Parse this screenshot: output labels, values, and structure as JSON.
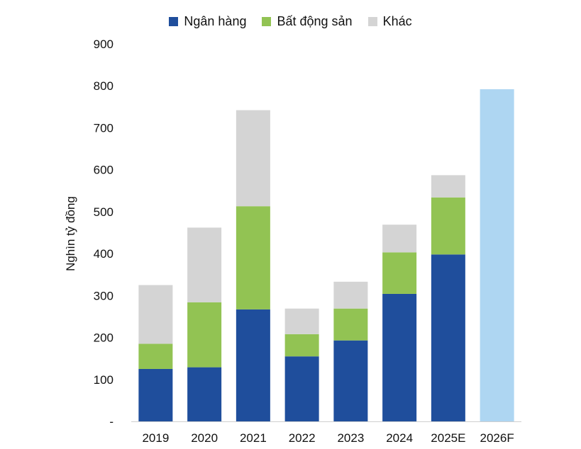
{
  "chart_data": {
    "type": "bar",
    "stacked": true,
    "categories": [
      "2019",
      "2020",
      "2021",
      "2022",
      "2023",
      "2024",
      "2025E",
      "2026F"
    ],
    "series": [
      {
        "name": "Ngân hàng",
        "color": "#1f4e9c",
        "values": [
          125,
          129,
          267,
          155,
          193,
          304,
          398,
          null
        ]
      },
      {
        "name": "Bất động sản",
        "color": "#92c353",
        "values": [
          60,
          155,
          246,
          53,
          76,
          99,
          136,
          null
        ]
      },
      {
        "name": "Khác",
        "color": "#d4d4d4",
        "values": [
          140,
          178,
          229,
          61,
          64,
          66,
          53,
          null
        ]
      }
    ],
    "forecast": {
      "category": "2026F",
      "total": 792,
      "color": "#aed6f2"
    },
    "ylabel": "Nghìn tỷ đồng",
    "ylim": [
      0,
      900
    ],
    "yticks": [
      0,
      100,
      200,
      300,
      400,
      500,
      600,
      700,
      800,
      900
    ],
    "ytick_labels": [
      "-",
      "100",
      "200",
      "300",
      "400",
      "500",
      "600",
      "700",
      "800",
      "900"
    ],
    "grid": false,
    "legend_position": "top-center"
  }
}
